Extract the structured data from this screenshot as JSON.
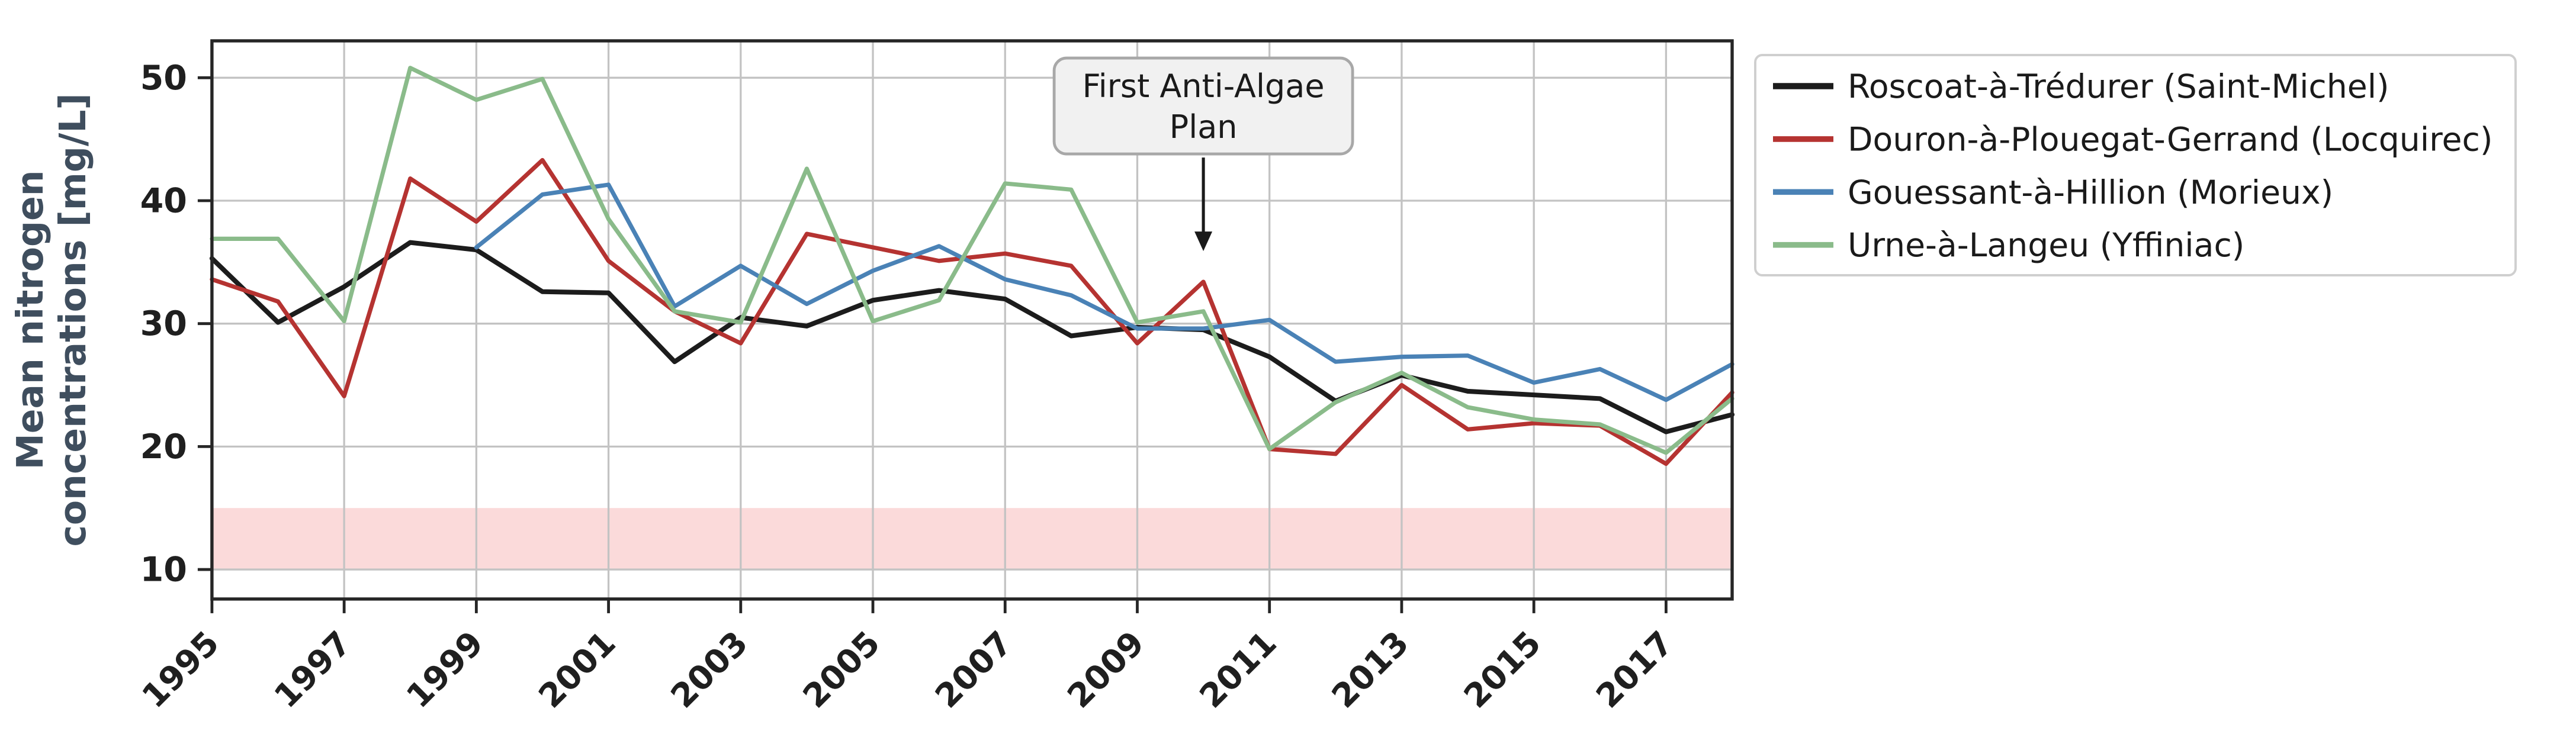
{
  "chart_data": {
    "type": "line",
    "title": "",
    "ylabel": "Mean nitrogen concentrations [mg/L]",
    "ylabel_lines": [
      "Mean nitrogen",
      "concentrations [mg/L]"
    ],
    "ylabel_color": "#3f4e5e",
    "x": [
      1995,
      1996,
      1997,
      1998,
      1999,
      2000,
      2001,
      2002,
      2003,
      2004,
      2005,
      2006,
      2007,
      2008,
      2009,
      2010,
      2011,
      2012,
      2013,
      2014,
      2015,
      2016,
      2017,
      2018
    ],
    "series": [
      {
        "name": "Roscoat-à-Trédurer (Saint-Michel)",
        "color": "#1c1c1c",
        "linewidth": 2.7,
        "values": [
          35.3,
          30.1,
          33.0,
          36.6,
          36.0,
          32.6,
          32.5,
          26.9,
          30.5,
          29.8,
          31.9,
          32.7,
          32.0,
          29.0,
          29.7,
          29.5,
          27.3,
          23.7,
          25.8,
          24.5,
          24.2,
          23.9,
          21.2,
          22.6
        ]
      },
      {
        "name": "Douron-à-Plouegat-Gerrand (Locquirec)",
        "color": "#b53331",
        "linewidth": 2.4,
        "values": [
          33.6,
          31.8,
          24.1,
          41.8,
          38.3,
          43.3,
          35.1,
          31.0,
          28.4,
          37.3,
          36.2,
          35.1,
          35.7,
          34.7,
          28.4,
          33.4,
          19.8,
          19.4,
          25.0,
          21.4,
          21.9,
          21.7,
          18.6,
          24.4
        ]
      },
      {
        "name": "Gouessant-à-Hillion (Morieux)",
        "color": "#4a82b6",
        "linewidth": 2.4,
        "values": [
          null,
          null,
          null,
          null,
          36.2,
          40.5,
          41.3,
          31.4,
          34.7,
          31.6,
          34.3,
          36.3,
          33.6,
          32.3,
          29.6,
          29.6,
          30.3,
          26.9,
          27.3,
          27.4,
          25.2,
          26.3,
          23.8,
          26.7
        ]
      },
      {
        "name": "Urne-à-Langeu (Yffiniac)",
        "color": "#8abb8a",
        "linewidth": 2.4,
        "values": [
          36.9,
          36.9,
          30.2,
          50.8,
          48.2,
          49.9,
          38.5,
          31.0,
          30.1,
          42.6,
          30.2,
          31.9,
          41.4,
          40.9,
          30.1,
          31.0,
          19.8,
          23.6,
          26.0,
          23.2,
          22.2,
          21.8,
          19.5,
          23.9
        ]
      }
    ],
    "xticks": [
      1995,
      1997,
      1999,
      2001,
      2003,
      2005,
      2007,
      2009,
      2011,
      2013,
      2015,
      2017
    ],
    "yticks": [
      10,
      20,
      30,
      40,
      50
    ],
    "xlim": [
      1995,
      2018
    ],
    "ylim": [
      7.6,
      53.0
    ],
    "grid": true,
    "grid_color": "#c3c3c3",
    "spine_color": "#262626",
    "tick_label_color": "#1f1f1f",
    "legend_position": "outside-right",
    "band": {
      "ymin": 10,
      "ymax": 15,
      "color": "#fbdada"
    },
    "annotation": {
      "lines": [
        "First Anti-Algae",
        "Plan"
      ],
      "x": 2010,
      "arrow_tip_value": 35.9,
      "box_top_value": 51.6,
      "box_bottom_value": 43.8,
      "box_fill": "#f1f1f1",
      "box_border": "#a8a8a8",
      "arrow_color": "#1a1a1a"
    }
  }
}
